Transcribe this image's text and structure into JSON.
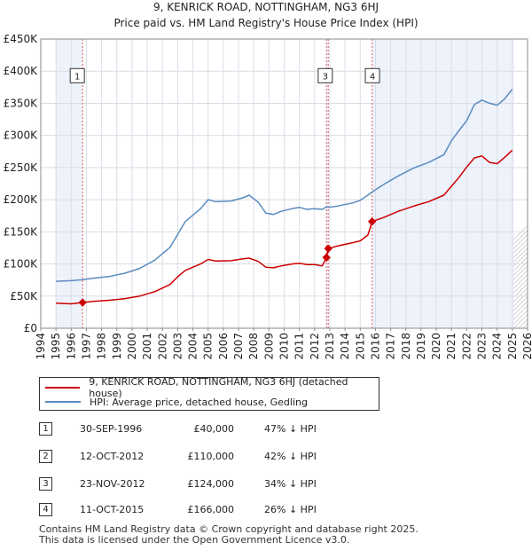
{
  "chart_data": {
    "type": "line",
    "title_line1": "9, KENRICK ROAD, NOTTINGHAM, NG3 6HJ",
    "title_line2": "Price paid vs. HM Land Registry's House Price Index (HPI)",
    "xlim": [
      1994,
      2026
    ],
    "ylim": [
      0,
      450000
    ],
    "x_ticks": [
      1994,
      1995,
      1996,
      1997,
      1998,
      1999,
      2000,
      2001,
      2002,
      2003,
      2004,
      2005,
      2006,
      2007,
      2008,
      2009,
      2010,
      2011,
      2012,
      2013,
      2014,
      2015,
      2016,
      2017,
      2018,
      2019,
      2020,
      2021,
      2022,
      2023,
      2024,
      2025,
      2026
    ],
    "y_ticks": [
      {
        "value": 0,
        "label": "£0"
      },
      {
        "value": 50000,
        "label": "£50K"
      },
      {
        "value": 100000,
        "label": "£100K"
      },
      {
        "value": 150000,
        "label": "£150K"
      },
      {
        "value": 200000,
        "label": "£200K"
      },
      {
        "value": 250000,
        "label": "£250K"
      },
      {
        "value": 300000,
        "label": "£300K"
      },
      {
        "value": 350000,
        "label": "£350K"
      },
      {
        "value": 400000,
        "label": "£400K"
      },
      {
        "value": 450000,
        "label": "£450K"
      }
    ],
    "data_start": 1995,
    "data_end": 2025.1,
    "series": [
      {
        "name": "9, KENRICK ROAD, NOTTINGHAM, NG3 6HJ (detached house)",
        "color": "#cc0000",
        "points": [
          [
            1995.0,
            39000
          ],
          [
            1996.0,
            38000
          ],
          [
            1996.75,
            40000
          ],
          [
            1997.5,
            42000
          ],
          [
            1998.5,
            43500
          ],
          [
            1999.5,
            46000
          ],
          [
            2000.5,
            50000
          ],
          [
            2001.5,
            57000
          ],
          [
            2002.5,
            68000
          ],
          [
            2003.0,
            80000
          ],
          [
            2003.5,
            90000
          ],
          [
            2004.5,
            100000
          ],
          [
            2005.0,
            107000
          ],
          [
            2005.5,
            104500
          ],
          [
            2006.5,
            105000
          ],
          [
            2007.3,
            108000
          ],
          [
            2007.7,
            109000
          ],
          [
            2008.3,
            104000
          ],
          [
            2008.8,
            95000
          ],
          [
            2009.3,
            94000
          ],
          [
            2009.8,
            97000
          ],
          [
            2010.5,
            100000
          ],
          [
            2011.0,
            101000
          ],
          [
            2011.5,
            99000
          ],
          [
            2012.0,
            99000
          ],
          [
            2012.5,
            97000
          ],
          [
            2012.78,
            110000
          ],
          [
            2012.9,
            124000
          ],
          [
            2013.5,
            128000
          ],
          [
            2014.5,
            133000
          ],
          [
            2015.0,
            136000
          ],
          [
            2015.5,
            145000
          ],
          [
            2015.78,
            166000
          ],
          [
            2016.5,
            172000
          ],
          [
            2017.5,
            182000
          ],
          [
            2018.5,
            190000
          ],
          [
            2019.5,
            197000
          ],
          [
            2020.5,
            207000
          ],
          [
            2021.0,
            221000
          ],
          [
            2021.5,
            235000
          ],
          [
            2022.0,
            251000
          ],
          [
            2022.5,
            265000
          ],
          [
            2023.0,
            268000
          ],
          [
            2023.5,
            258000
          ],
          [
            2024.0,
            256000
          ],
          [
            2024.5,
            266000
          ],
          [
            2025.0,
            277000
          ]
        ]
      },
      {
        "name": "HPI: Average price, detached house, Gedling",
        "color": "#5a8bbf",
        "points": [
          [
            1995.0,
            73000
          ],
          [
            1996.0,
            74000
          ],
          [
            1996.75,
            75500
          ],
          [
            1997.5,
            78000
          ],
          [
            1998.5,
            80500
          ],
          [
            1999.5,
            85500
          ],
          [
            2000.5,
            93000
          ],
          [
            2001.5,
            106000
          ],
          [
            2002.5,
            126000
          ],
          [
            2003.0,
            146000
          ],
          [
            2003.5,
            166000
          ],
          [
            2004.5,
            186000
          ],
          [
            2005.0,
            200000
          ],
          [
            2005.5,
            197000
          ],
          [
            2006.5,
            198000
          ],
          [
            2007.3,
            203000
          ],
          [
            2007.7,
            207000
          ],
          [
            2008.3,
            196000
          ],
          [
            2008.8,
            179000
          ],
          [
            2009.3,
            177000
          ],
          [
            2009.8,
            182000
          ],
          [
            2010.5,
            186000
          ],
          [
            2011.0,
            188000
          ],
          [
            2011.5,
            185000
          ],
          [
            2012.0,
            186000
          ],
          [
            2012.5,
            185000
          ],
          [
            2012.78,
            189000
          ],
          [
            2012.9,
            188000
          ],
          [
            2013.5,
            190000
          ],
          [
            2014.5,
            195000
          ],
          [
            2015.0,
            199000
          ],
          [
            2015.5,
            207000
          ],
          [
            2015.78,
            212000
          ],
          [
            2016.5,
            223000
          ],
          [
            2017.5,
            237000
          ],
          [
            2018.5,
            249000
          ],
          [
            2019.5,
            258000
          ],
          [
            2020.5,
            270000
          ],
          [
            2021.0,
            292000
          ],
          [
            2021.5,
            308000
          ],
          [
            2022.0,
            323000
          ],
          [
            2022.5,
            348000
          ],
          [
            2023.0,
            355000
          ],
          [
            2023.5,
            350000
          ],
          [
            2024.0,
            347000
          ],
          [
            2024.5,
            357000
          ],
          [
            2025.0,
            372000
          ]
        ]
      }
    ],
    "shaded_spans": [
      [
        1995.0,
        1996.75
      ],
      [
        2012.78,
        2012.9
      ],
      [
        2015.78,
        2025.1
      ]
    ],
    "sale_markers": [
      {
        "num": "1",
        "x": 1996.75,
        "y": 40000
      },
      {
        "num": "2",
        "x": 2012.78,
        "y": 110000
      },
      {
        "num": "3",
        "x": 2012.9,
        "y": 124000
      },
      {
        "num": "4",
        "x": 2015.78,
        "y": 166000
      }
    ],
    "chart_labels": [
      {
        "num": "1",
        "x": 1996.4,
        "y": 393000
      },
      {
        "num": "3",
        "x": 2012.7,
        "y": 393000
      },
      {
        "num": "4",
        "x": 2015.8,
        "y": 393000
      }
    ]
  },
  "legend": {
    "property_label": "9, KENRICK ROAD, NOTTINGHAM, NG3 6HJ (detached house)",
    "hpi_label": "HPI: Average price, detached house, Gedling",
    "property_color": "#cc0000",
    "hpi_color": "#5a8bbf"
  },
  "sales": [
    {
      "num": "1",
      "date": "30-SEP-1996",
      "price": "£40,000",
      "hpi": "47% ↓ HPI"
    },
    {
      "num": "2",
      "date": "12-OCT-2012",
      "price": "£110,000",
      "hpi": "42% ↓ HPI"
    },
    {
      "num": "3",
      "date": "23-NOV-2012",
      "price": "£124,000",
      "hpi": "34% ↓ HPI"
    },
    {
      "num": "4",
      "date": "11-OCT-2015",
      "price": "£166,000",
      "hpi": "26% ↓ HPI"
    }
  ],
  "footer": {
    "line1": "Contains HM Land Registry data © Crown copyright and database right 2025.",
    "line2": "This data is licensed under the Open Government Licence v3.0."
  }
}
